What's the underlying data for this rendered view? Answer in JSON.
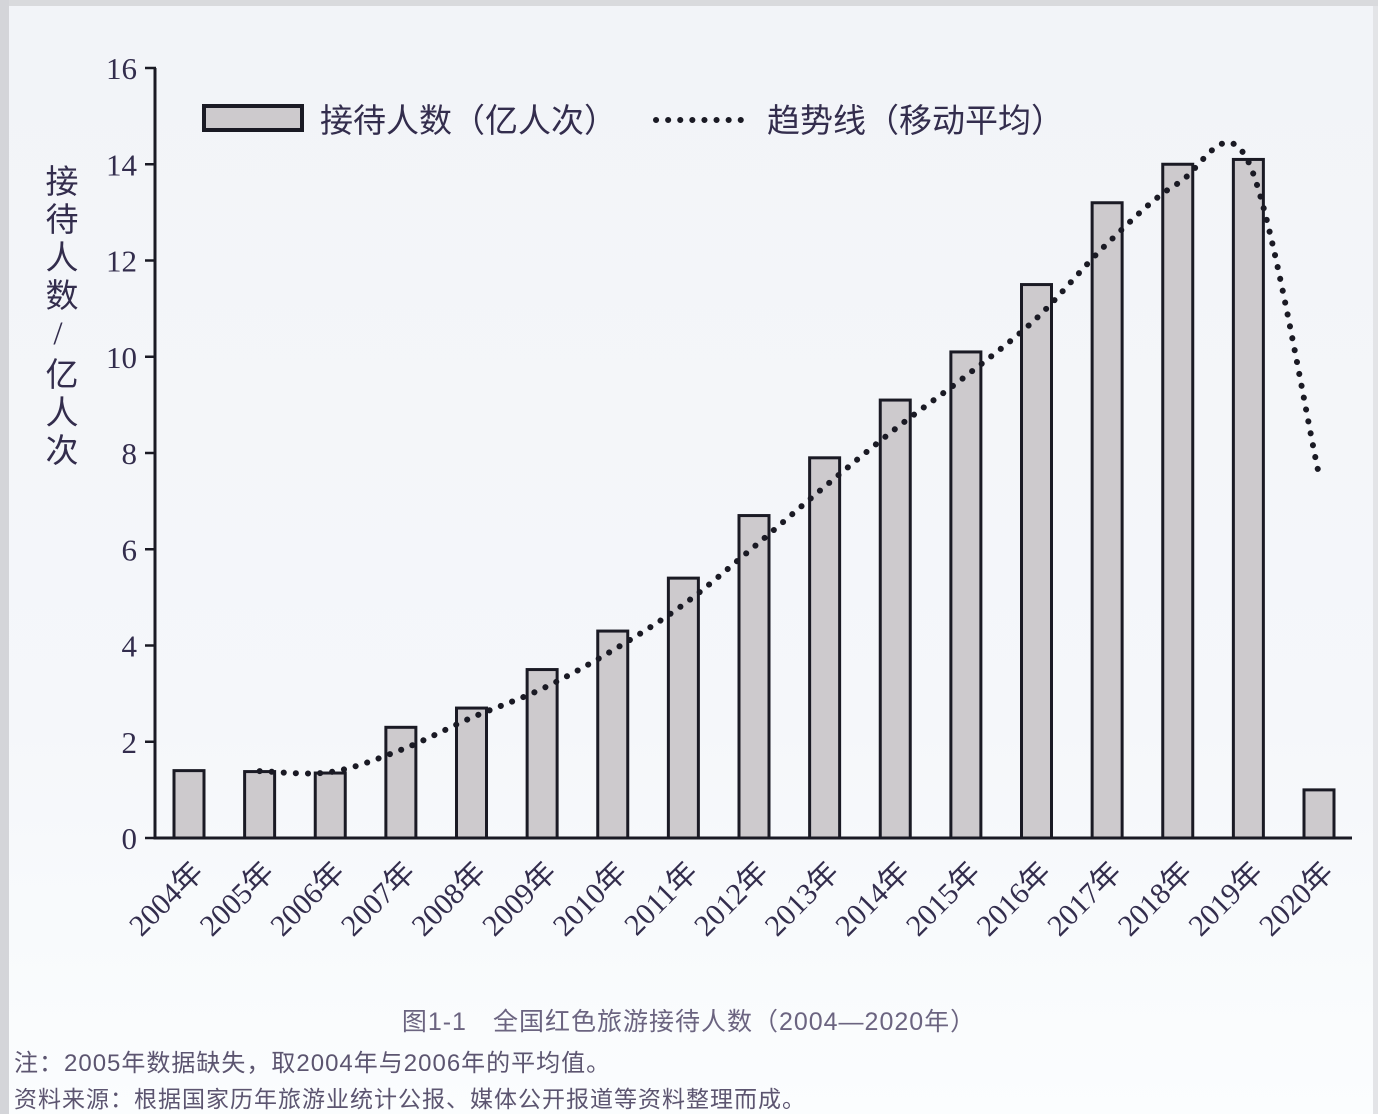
{
  "figure": {
    "caption": "图1-1　全国红色旅游接待人数（2004—2020年）",
    "note": "注：2005年数据缺失，取2004年与2006年的平均值。",
    "source": "资料来源：根据国家历年旅游业统计公报、媒体公开报道等资料整理而成。"
  },
  "colors": {
    "background": "#f4f6fa",
    "axis": "#1a1a24",
    "chart_text": "#332d4d",
    "bar_fill": "#cdcacd",
    "bar_stroke": "#1a1a24",
    "trend_line": "#1a1a24",
    "footer_text": "#5c5570"
  },
  "chart_data": {
    "type": "bar",
    "title": "图1-1　全国红色旅游接待人数（2004—2020年）",
    "ylabel": "接待人数/亿人次",
    "xlabel": "",
    "ylim": [
      0,
      16
    ],
    "yticks": [
      0,
      2,
      4,
      6,
      8,
      10,
      12,
      14,
      16
    ],
    "grid": false,
    "legend_position": "top",
    "categories": [
      "2004年",
      "2005年",
      "2006年",
      "2007年",
      "2008年",
      "2009年",
      "2010年",
      "2011年",
      "2012年",
      "2013年",
      "2014年",
      "2015年",
      "2016年",
      "2017年",
      "2018年",
      "2019年",
      "2020年"
    ],
    "series": [
      {
        "name": "接待人数（亿人次）",
        "type": "bar",
        "values": [
          1.4,
          1.38,
          1.35,
          2.3,
          2.7,
          3.5,
          4.3,
          5.4,
          6.7,
          7.9,
          9.1,
          10.1,
          11.5,
          13.2,
          14.0,
          14.1,
          1.0
        ]
      },
      {
        "name": "趋势线（移动平均）",
        "type": "line_dotted",
        "values": [
          null,
          1.39,
          1.37,
          1.83,
          2.5,
          3.1,
          3.9,
          4.85,
          6.05,
          7.3,
          8.5,
          9.6,
          10.8,
          12.35,
          13.6,
          14.05,
          7.55
        ]
      }
    ]
  }
}
